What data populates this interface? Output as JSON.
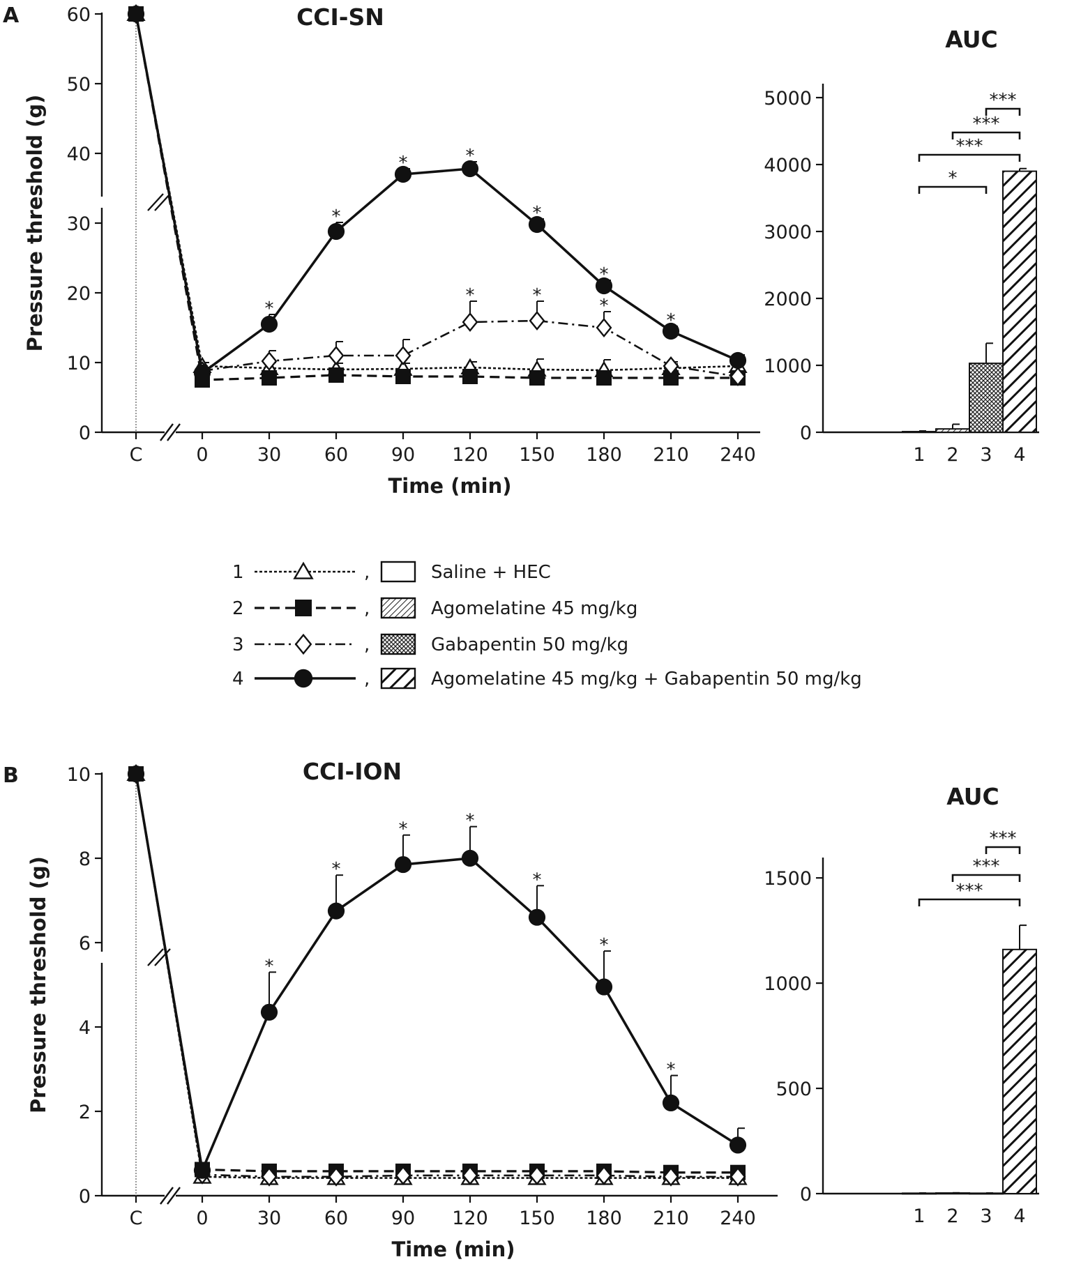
{
  "figure": {
    "panel_labels": [
      "A",
      "B"
    ]
  },
  "legend": {
    "items": [
      {
        "num": "1",
        "label": "Saline + HEC",
        "marker": "open-triangle",
        "line": "dotted",
        "bar_fill": "white"
      },
      {
        "num": "2",
        "label": "Agomelatine 45 mg/kg",
        "marker": "filled-square",
        "line": "dashed",
        "bar_fill": "fine-hatch"
      },
      {
        "num": "3",
        "label": "Gabapentin 50 mg/kg",
        "marker": "open-diamond",
        "line": "dash-dot",
        "bar_fill": "cross-hatch"
      },
      {
        "num": "4",
        "label": "Agomelatine 45 mg/kg + Gabapentin 50 mg/kg",
        "marker": "filled-circle",
        "line": "solid",
        "bar_fill": "bold-hatch"
      }
    ],
    "separator": ","
  },
  "chart_data": [
    {
      "id": "A-line",
      "type": "line",
      "title": "CCI-SN",
      "xlabel": "Time (min)",
      "ylabel": "Pressure threshold (g)",
      "categories": [
        "C",
        "0",
        "30",
        "60",
        "90",
        "120",
        "150",
        "180",
        "210",
        "240"
      ],
      "ylim": [
        0,
        60
      ],
      "yticks": [
        "0",
        "10",
        "20",
        "30",
        "40",
        "50",
        "60"
      ],
      "significance_mark": "*",
      "series": [
        {
          "name": "1",
          "values": [
            60,
            9.5,
            9.2,
            9.0,
            9.1,
            9.3,
            9.0,
            8.9,
            9.2,
            9.5
          ],
          "errors": [
            0,
            0.5,
            0.8,
            0.9,
            0.8,
            0.8,
            1.5,
            1.5,
            0.6,
            0.8
          ],
          "sig": []
        },
        {
          "name": "2",
          "values": [
            60,
            7.5,
            7.8,
            8.2,
            8.0,
            8.0,
            7.8,
            7.8,
            7.8,
            7.8
          ],
          "errors": [
            0,
            0.4,
            0.4,
            0.4,
            0.4,
            0.4,
            0.4,
            0.4,
            0.4,
            0.4
          ],
          "sig": []
        },
        {
          "name": "3",
          "values": [
            60,
            8.8,
            10.2,
            11.0,
            11.0,
            15.8,
            16.0,
            15.0,
            9.5,
            8.0
          ],
          "errors": [
            0,
            0.5,
            1.5,
            2.0,
            2.3,
            3.0,
            2.8,
            2.3,
            0.6,
            0.5
          ],
          "sig": [
            5,
            6,
            7
          ]
        },
        {
          "name": "4",
          "values": [
            60,
            8.5,
            15.5,
            28.8,
            37.0,
            37.8,
            29.8,
            21.0,
            14.5,
            10.3
          ],
          "errors": [
            0,
            0.5,
            1.4,
            1.3,
            0.8,
            1.0,
            0.8,
            0.8,
            0.7,
            0.8
          ],
          "sig": [
            2,
            3,
            4,
            5,
            6,
            7,
            8
          ]
        }
      ]
    },
    {
      "id": "A-auc",
      "type": "bar",
      "title": "AUC",
      "categories": [
        "1",
        "2",
        "3",
        "4"
      ],
      "values": [
        10,
        50,
        1030,
        3900
      ],
      "errors": [
        10,
        70,
        300,
        40
      ],
      "ylim": [
        0,
        5000
      ],
      "yticks": [
        "0",
        "1000",
        "2000",
        "3000",
        "4000",
        "5000"
      ],
      "comparisons": [
        {
          "from": 1,
          "to": 3,
          "label": "*"
        },
        {
          "from": 1,
          "to": 4,
          "label": "***"
        },
        {
          "from": 2,
          "to": 4,
          "label": "***"
        },
        {
          "from": 3,
          "to": 4,
          "label": "***"
        }
      ]
    },
    {
      "id": "B-line",
      "type": "line",
      "title": "CCI-ION",
      "xlabel": "Time (min)",
      "ylabel": "Pressure threshold (g)",
      "categories": [
        "C",
        "0",
        "30",
        "60",
        "90",
        "120",
        "150",
        "180",
        "210",
        "240"
      ],
      "ylim": [
        0,
        10
      ],
      "yticks": [
        "0",
        "2",
        "4",
        "6",
        "8",
        "10"
      ],
      "significance_mark": "*",
      "series": [
        {
          "name": "1",
          "values": [
            10,
            0.45,
            0.42,
            0.42,
            0.42,
            0.42,
            0.42,
            0.42,
            0.42,
            0.42
          ],
          "errors": [
            0,
            0.03,
            0.03,
            0.03,
            0.03,
            0.03,
            0.03,
            0.03,
            0.03,
            0.03
          ],
          "sig": []
        },
        {
          "name": "2",
          "values": [
            10,
            0.62,
            0.58,
            0.58,
            0.58,
            0.58,
            0.58,
            0.58,
            0.55,
            0.55
          ],
          "errors": [
            0,
            0.05,
            0.05,
            0.05,
            0.05,
            0.05,
            0.05,
            0.05,
            0.05,
            0.05
          ],
          "sig": []
        },
        {
          "name": "3",
          "values": [
            10,
            0.5,
            0.45,
            0.45,
            0.48,
            0.48,
            0.48,
            0.48,
            0.45,
            0.45
          ],
          "errors": [
            0,
            0.04,
            0.04,
            0.04,
            0.04,
            0.04,
            0.04,
            0.04,
            0.04,
            0.04
          ],
          "sig": []
        },
        {
          "name": "4",
          "values": [
            10,
            0.6,
            4.35,
            6.75,
            7.85,
            8.0,
            6.6,
            4.95,
            2.2,
            1.2
          ],
          "errors": [
            0,
            0.1,
            0.95,
            0.85,
            0.7,
            0.75,
            0.75,
            0.85,
            0.65,
            0.4
          ],
          "sig": [
            2,
            3,
            4,
            5,
            6,
            7,
            8
          ]
        }
      ]
    },
    {
      "id": "B-auc",
      "type": "bar",
      "title": "AUC",
      "categories": [
        "1",
        "2",
        "3",
        "4"
      ],
      "values": [
        2,
        3,
        2,
        1160
      ],
      "errors": [
        1,
        1,
        1,
        115
      ],
      "ylim": [
        0,
        1600
      ],
      "yticks": [
        "0",
        "500",
        "1000",
        "1500"
      ],
      "tick_values": [
        0,
        500,
        1000,
        1500
      ],
      "comparisons": [
        {
          "from": 1,
          "to": 4,
          "label": "***"
        },
        {
          "from": 2,
          "to": 4,
          "label": "***"
        },
        {
          "from": 3,
          "to": 4,
          "label": "***"
        }
      ]
    }
  ]
}
